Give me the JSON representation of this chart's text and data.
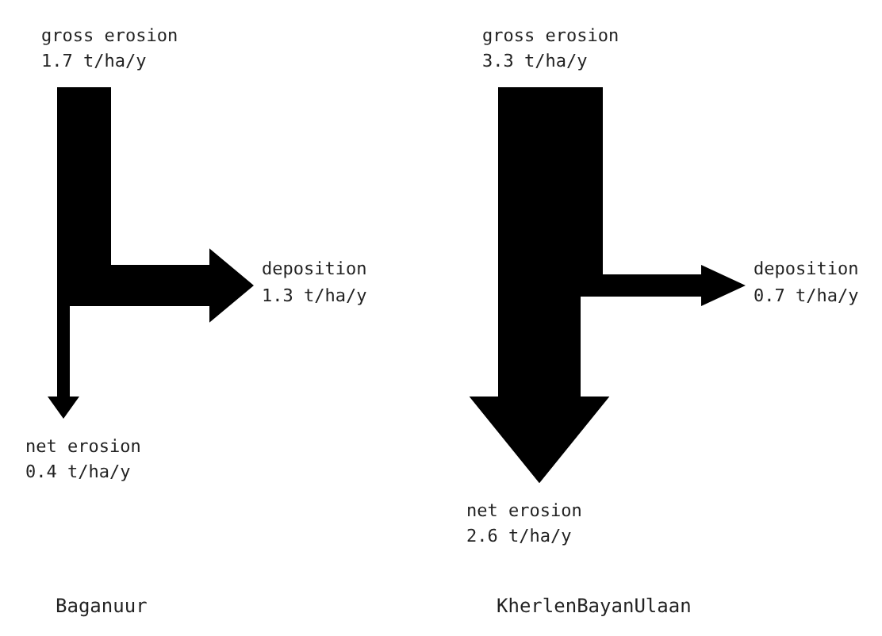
{
  "chart_data": [
    {
      "type": "other",
      "title": "Baganuur",
      "categories": [
        "gross erosion",
        "deposition",
        "net erosion"
      ],
      "values": [
        1.7,
        1.3,
        0.4
      ],
      "value_labels": [
        "1.7 t/ha/y",
        "1.3 t/ha/y",
        "0.4 t/ha/y"
      ],
      "colors": [
        "#000000",
        "#000000",
        "#000000"
      ]
    },
    {
      "type": "other",
      "title": "KherlenBayanUlaan",
      "categories": [
        "gross erosion",
        "deposition",
        "net erosion"
      ],
      "values": [
        3.3,
        0.7,
        2.6
      ],
      "value_labels": [
        "3.3 t/ha/y",
        "0.7 t/ha/y",
        "2.6 t/ha/y"
      ],
      "colors": [
        "#000000",
        "#000000",
        "#000000"
      ]
    }
  ]
}
